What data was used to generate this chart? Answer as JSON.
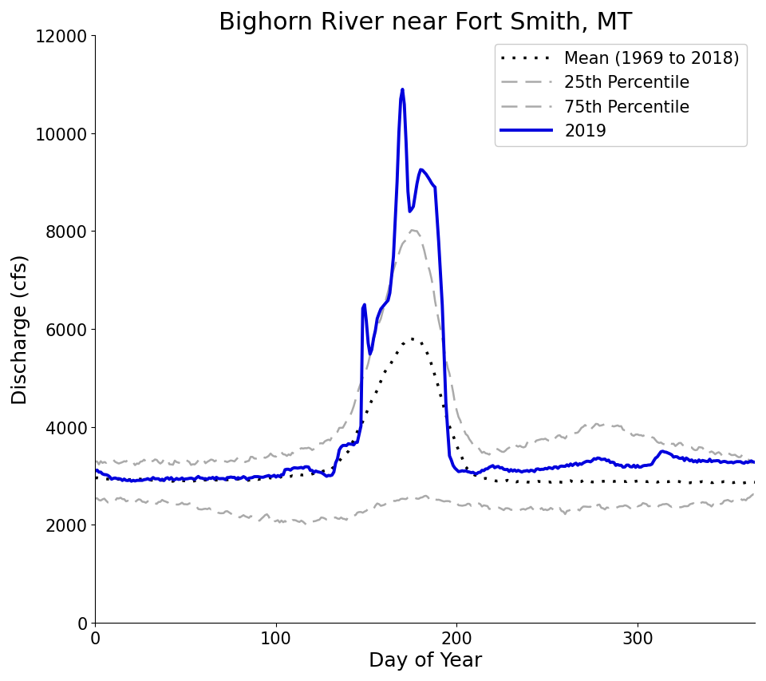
{
  "title": "Bighorn River near Fort Smith, MT",
  "xlabel": "Day of Year",
  "ylabel": "Discharge (cfs)",
  "xlim": [
    0,
    365
  ],
  "ylim": [
    0,
    12000
  ],
  "xticks": [
    0,
    100,
    200,
    300
  ],
  "yticks": [
    0,
    2000,
    4000,
    6000,
    8000,
    10000,
    12000
  ],
  "title_fontsize": 22,
  "label_fontsize": 18,
  "tick_fontsize": 15,
  "legend_fontsize": 15,
  "mean_color": "#000000",
  "p25_color": "#aaaaaa",
  "p75_color": "#aaaaaa",
  "y2019_color": "#0000dd",
  "mean_linewidth": 2.5,
  "p25_linewidth": 1.8,
  "p75_linewidth": 1.8,
  "y2019_linewidth": 2.8,
  "legend_entries": [
    "Mean (1969 to 2018)",
    "25th Percentile",
    "75th Percentile",
    "2019"
  ],
  "background_color": "#ffffff"
}
